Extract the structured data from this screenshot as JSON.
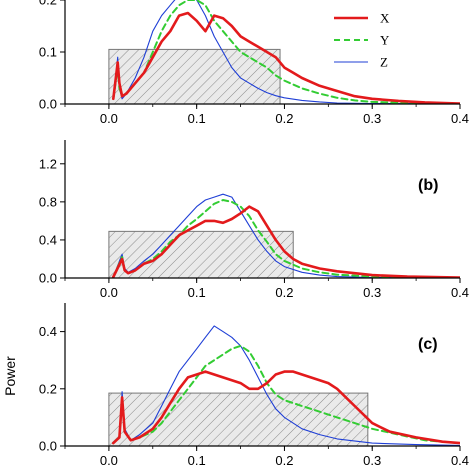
{
  "chart_data": [
    {
      "type": "line",
      "panel_label": "",
      "ylabel": "",
      "xlim": [
        -0.05,
        0.4
      ],
      "ylim": [
        0,
        0.2
      ],
      "xticks": [
        "0.0",
        "0.1",
        "0.2",
        "0.3",
        "0.4"
      ],
      "xtick_values": [
        0.0,
        0.1,
        0.2,
        0.3,
        0.4
      ],
      "yticks": [
        "0.0",
        "0.1",
        "0.2"
      ],
      "ytick_values": [
        0.0,
        0.1,
        0.2
      ],
      "hatched_band": {
        "x0": 0.0,
        "x1": 0.195,
        "height": 0.105
      },
      "legend": {
        "position": "top-right",
        "entries": [
          "X",
          "Y",
          "Z"
        ]
      },
      "series": [
        {
          "name": "X",
          "color": "#e31a1c",
          "style": "solid-thick",
          "x": [
            0.005,
            0.01,
            0.012,
            0.015,
            0.02,
            0.03,
            0.04,
            0.05,
            0.06,
            0.07,
            0.08,
            0.09,
            0.1,
            0.11,
            0.12,
            0.13,
            0.14,
            0.15,
            0.16,
            0.17,
            0.18,
            0.19,
            0.2,
            0.21,
            0.22,
            0.24,
            0.26,
            0.28,
            0.3,
            0.33,
            0.36,
            0.4
          ],
          "y": [
            0.01,
            0.08,
            0.04,
            0.015,
            0.02,
            0.04,
            0.06,
            0.09,
            0.12,
            0.14,
            0.17,
            0.175,
            0.16,
            0.14,
            0.17,
            0.165,
            0.15,
            0.13,
            0.12,
            0.11,
            0.1,
            0.09,
            0.07,
            0.06,
            0.05,
            0.035,
            0.025,
            0.015,
            0.01,
            0.006,
            0.003,
            0.001
          ]
        },
        {
          "name": "Y",
          "color": "#33cc33",
          "style": "dashed",
          "x": [
            0.005,
            0.01,
            0.012,
            0.015,
            0.02,
            0.03,
            0.04,
            0.05,
            0.06,
            0.07,
            0.08,
            0.09,
            0.1,
            0.11,
            0.12,
            0.13,
            0.14,
            0.15,
            0.16,
            0.17,
            0.18,
            0.19,
            0.2,
            0.22,
            0.24,
            0.26,
            0.28,
            0.3,
            0.34,
            0.4
          ],
          "y": [
            0.01,
            0.07,
            0.03,
            0.015,
            0.02,
            0.04,
            0.06,
            0.1,
            0.14,
            0.17,
            0.19,
            0.2,
            0.2,
            0.19,
            0.16,
            0.14,
            0.12,
            0.1,
            0.09,
            0.08,
            0.07,
            0.055,
            0.045,
            0.03,
            0.02,
            0.012,
            0.007,
            0.004,
            0.002,
            0.001
          ]
        },
        {
          "name": "Z",
          "color": "#1f3fd6",
          "style": "solid-thin",
          "x": [
            0.005,
            0.01,
            0.012,
            0.015,
            0.02,
            0.03,
            0.04,
            0.05,
            0.06,
            0.07,
            0.08,
            0.085,
            0.09,
            0.1,
            0.11,
            0.12,
            0.13,
            0.14,
            0.15,
            0.16,
            0.17,
            0.18,
            0.19,
            0.2,
            0.22,
            0.24,
            0.26,
            0.3,
            0.4
          ],
          "y": [
            0.01,
            0.09,
            0.03,
            0.01,
            0.02,
            0.05,
            0.09,
            0.14,
            0.17,
            0.19,
            0.21,
            0.22,
            0.215,
            0.2,
            0.17,
            0.13,
            0.1,
            0.07,
            0.05,
            0.04,
            0.03,
            0.022,
            0.016,
            0.012,
            0.007,
            0.004,
            0.002,
            0.001,
            0.0005
          ]
        }
      ]
    },
    {
      "type": "line",
      "panel_label": "(b)",
      "ylabel": "",
      "xlim": [
        -0.05,
        0.4
      ],
      "ylim": [
        0,
        1.45
      ],
      "xticks": [
        "0.0",
        "0.1",
        "0.2",
        "0.3",
        "0.4"
      ],
      "xtick_values": [
        0.0,
        0.1,
        0.2,
        0.3,
        0.4
      ],
      "yticks": [
        "0.0",
        "0.4",
        "0.8",
        "1.2"
      ],
      "ytick_values": [
        0.0,
        0.4,
        0.8,
        1.2
      ],
      "hatched_band": {
        "x0": 0.0,
        "x1": 0.21,
        "height": 0.49
      },
      "series": [
        {
          "name": "X",
          "color": "#e31a1c",
          "style": "solid-thick",
          "x": [
            0.005,
            0.015,
            0.018,
            0.022,
            0.03,
            0.04,
            0.05,
            0.06,
            0.07,
            0.08,
            0.09,
            0.1,
            0.11,
            0.12,
            0.13,
            0.14,
            0.15,
            0.16,
            0.17,
            0.18,
            0.19,
            0.2,
            0.21,
            0.22,
            0.24,
            0.26,
            0.28,
            0.3,
            0.34,
            0.4
          ],
          "y": [
            0.01,
            0.2,
            0.08,
            0.05,
            0.08,
            0.15,
            0.18,
            0.25,
            0.35,
            0.45,
            0.5,
            0.55,
            0.6,
            0.6,
            0.58,
            0.62,
            0.68,
            0.75,
            0.7,
            0.55,
            0.4,
            0.28,
            0.2,
            0.15,
            0.1,
            0.07,
            0.05,
            0.03,
            0.015,
            0.005
          ]
        },
        {
          "name": "Y",
          "color": "#33cc33",
          "style": "dashed",
          "x": [
            0.005,
            0.015,
            0.018,
            0.022,
            0.03,
            0.04,
            0.05,
            0.06,
            0.07,
            0.08,
            0.09,
            0.1,
            0.11,
            0.12,
            0.13,
            0.14,
            0.15,
            0.16,
            0.17,
            0.18,
            0.19,
            0.2,
            0.22,
            0.24,
            0.26,
            0.3,
            0.4
          ],
          "y": [
            0.01,
            0.22,
            0.08,
            0.05,
            0.08,
            0.15,
            0.2,
            0.28,
            0.38,
            0.45,
            0.55,
            0.62,
            0.7,
            0.78,
            0.82,
            0.8,
            0.75,
            0.65,
            0.5,
            0.38,
            0.25,
            0.18,
            0.1,
            0.06,
            0.035,
            0.015,
            0.004
          ]
        },
        {
          "name": "Z",
          "color": "#1f3fd6",
          "style": "solid-thin",
          "x": [
            0.005,
            0.015,
            0.018,
            0.022,
            0.03,
            0.04,
            0.05,
            0.06,
            0.07,
            0.08,
            0.09,
            0.1,
            0.11,
            0.12,
            0.13,
            0.14,
            0.15,
            0.16,
            0.17,
            0.18,
            0.19,
            0.2,
            0.22,
            0.24,
            0.26,
            0.3,
            0.4
          ],
          "y": [
            0.01,
            0.25,
            0.1,
            0.06,
            0.1,
            0.18,
            0.25,
            0.35,
            0.45,
            0.55,
            0.65,
            0.75,
            0.82,
            0.85,
            0.88,
            0.85,
            0.7,
            0.55,
            0.4,
            0.28,
            0.18,
            0.12,
            0.06,
            0.03,
            0.015,
            0.005,
            0.001
          ]
        }
      ]
    },
    {
      "type": "line",
      "panel_label": "(c)",
      "ylabel": "Power",
      "xlim": [
        -0.05,
        0.4
      ],
      "ylim": [
        0,
        0.5
      ],
      "xticks": [
        "0.0",
        "0.1",
        "0.2",
        "0.3",
        "0.4"
      ],
      "xtick_values": [
        0.0,
        0.1,
        0.2,
        0.3,
        0.4
      ],
      "yticks": [
        "0.0",
        "0.2",
        "0.4"
      ],
      "ytick_values": [
        0.0,
        0.2,
        0.4
      ],
      "hatched_band": {
        "x0": 0.0,
        "x1": 0.295,
        "height": 0.185
      },
      "series": [
        {
          "name": "X",
          "color": "#e31a1c",
          "style": "solid-thick",
          "x": [
            0.005,
            0.012,
            0.015,
            0.018,
            0.025,
            0.035,
            0.05,
            0.06,
            0.07,
            0.08,
            0.09,
            0.1,
            0.11,
            0.12,
            0.13,
            0.14,
            0.15,
            0.16,
            0.17,
            0.18,
            0.19,
            0.2,
            0.21,
            0.22,
            0.23,
            0.24,
            0.25,
            0.26,
            0.27,
            0.28,
            0.3,
            0.32,
            0.35,
            0.38,
            0.4
          ],
          "y": [
            0.01,
            0.03,
            0.17,
            0.05,
            0.02,
            0.03,
            0.06,
            0.1,
            0.15,
            0.2,
            0.24,
            0.25,
            0.26,
            0.25,
            0.24,
            0.23,
            0.22,
            0.2,
            0.2,
            0.22,
            0.25,
            0.26,
            0.26,
            0.25,
            0.24,
            0.23,
            0.22,
            0.2,
            0.17,
            0.14,
            0.08,
            0.05,
            0.03,
            0.015,
            0.01
          ]
        },
        {
          "name": "Y",
          "color": "#33cc33",
          "style": "dashed",
          "x": [
            0.005,
            0.012,
            0.015,
            0.018,
            0.025,
            0.035,
            0.05,
            0.06,
            0.07,
            0.08,
            0.09,
            0.1,
            0.11,
            0.12,
            0.13,
            0.14,
            0.15,
            0.16,
            0.17,
            0.18,
            0.19,
            0.2,
            0.22,
            0.24,
            0.26,
            0.28,
            0.3,
            0.33,
            0.36,
            0.4
          ],
          "y": [
            0.01,
            0.03,
            0.16,
            0.05,
            0.02,
            0.03,
            0.05,
            0.08,
            0.12,
            0.16,
            0.2,
            0.24,
            0.28,
            0.3,
            0.32,
            0.34,
            0.35,
            0.33,
            0.28,
            0.22,
            0.18,
            0.16,
            0.14,
            0.12,
            0.1,
            0.08,
            0.06,
            0.04,
            0.02,
            0.01
          ]
        },
        {
          "name": "Z",
          "color": "#1f3fd6",
          "style": "solid-thin",
          "x": [
            0.005,
            0.012,
            0.015,
            0.018,
            0.025,
            0.035,
            0.05,
            0.06,
            0.07,
            0.08,
            0.09,
            0.1,
            0.11,
            0.12,
            0.13,
            0.14,
            0.15,
            0.16,
            0.17,
            0.18,
            0.19,
            0.2,
            0.22,
            0.24,
            0.26,
            0.3,
            0.35,
            0.4
          ],
          "y": [
            0.01,
            0.03,
            0.19,
            0.06,
            0.02,
            0.04,
            0.08,
            0.14,
            0.2,
            0.26,
            0.3,
            0.34,
            0.38,
            0.42,
            0.4,
            0.38,
            0.35,
            0.3,
            0.24,
            0.18,
            0.13,
            0.1,
            0.06,
            0.04,
            0.025,
            0.01,
            0.005,
            0.002
          ]
        }
      ]
    }
  ]
}
